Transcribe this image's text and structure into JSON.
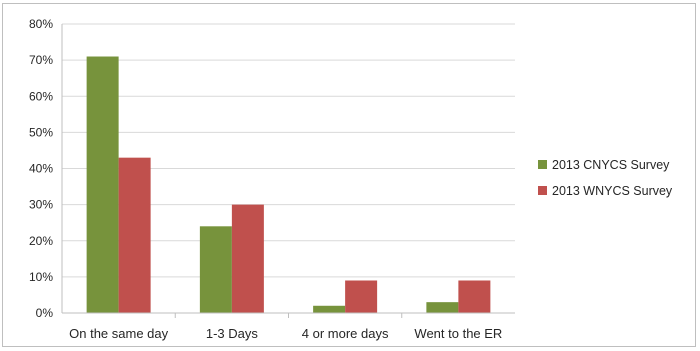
{
  "chart_data": {
    "type": "bar",
    "categories": [
      "On the same day",
      "1-3 Days",
      "4 or more days",
      "Went to the ER"
    ],
    "series": [
      {
        "name": "2013 CNYCS Survey",
        "color": "#77933c",
        "values": [
          71,
          24,
          2,
          3
        ]
      },
      {
        "name": "2013 WNYCS Survey",
        "color": "#c0504d",
        "values": [
          43,
          30,
          9,
          9
        ]
      }
    ],
    "y_ticks": [
      "0%",
      "10%",
      "20%",
      "30%",
      "40%",
      "50%",
      "60%",
      "70%",
      "80%"
    ],
    "ylim": [
      0,
      80
    ],
    "grid": true,
    "legend_position": "right",
    "title": "",
    "xlabel": "",
    "ylabel": ""
  }
}
